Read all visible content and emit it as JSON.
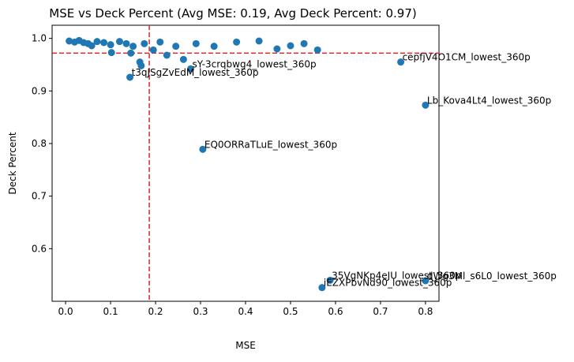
{
  "chart_data": {
    "type": "scatter",
    "title": "MSE vs Deck Percent (Avg MSE: 0.19, Avg Deck Percent: 0.97)",
    "xlabel": "MSE",
    "ylabel": "Deck Percent",
    "xlim": [
      -0.03,
      0.83
    ],
    "ylim": [
      0.5,
      1.025
    ],
    "xticks": [
      "0.0",
      "0.1",
      "0.2",
      "0.3",
      "0.4",
      "0.5",
      "0.6",
      "0.7",
      "0.8"
    ],
    "yticks": [
      "0.6",
      "0.7",
      "0.8",
      "0.9",
      "1.0"
    ],
    "grid": false,
    "marker_color": "#1f77b4",
    "avg_line_color": "#d62728",
    "avg_mse": 0.186,
    "avg_deck_percent": 0.972,
    "points": [
      {
        "x": 0.008,
        "y": 0.995,
        "label": ""
      },
      {
        "x": 0.02,
        "y": 0.993,
        "label": ""
      },
      {
        "x": 0.03,
        "y": 0.996,
        "label": ""
      },
      {
        "x": 0.04,
        "y": 0.992,
        "label": ""
      },
      {
        "x": 0.05,
        "y": 0.99,
        "label": ""
      },
      {
        "x": 0.058,
        "y": 0.986,
        "label": ""
      },
      {
        "x": 0.07,
        "y": 0.994,
        "label": ""
      },
      {
        "x": 0.085,
        "y": 0.992,
        "label": ""
      },
      {
        "x": 0.1,
        "y": 0.988,
        "label": ""
      },
      {
        "x": 0.102,
        "y": 0.973,
        "label": ""
      },
      {
        "x": 0.12,
        "y": 0.994,
        "label": ""
      },
      {
        "x": 0.135,
        "y": 0.99,
        "label": ""
      },
      {
        "x": 0.145,
        "y": 0.972,
        "label": ""
      },
      {
        "x": 0.15,
        "y": 0.985,
        "label": ""
      },
      {
        "x": 0.165,
        "y": 0.955,
        "label": ""
      },
      {
        "x": 0.168,
        "y": 0.948,
        "label": ""
      },
      {
        "x": 0.175,
        "y": 0.99,
        "label": ""
      },
      {
        "x": 0.195,
        "y": 0.978,
        "label": ""
      },
      {
        "x": 0.21,
        "y": 0.993,
        "label": ""
      },
      {
        "x": 0.225,
        "y": 0.968,
        "label": ""
      },
      {
        "x": 0.245,
        "y": 0.985,
        "label": ""
      },
      {
        "x": 0.262,
        "y": 0.96,
        "label": ""
      },
      {
        "x": 0.29,
        "y": 0.99,
        "label": ""
      },
      {
        "x": 0.33,
        "y": 0.985,
        "label": ""
      },
      {
        "x": 0.38,
        "y": 0.993,
        "label": ""
      },
      {
        "x": 0.43,
        "y": 0.995,
        "label": ""
      },
      {
        "x": 0.47,
        "y": 0.98,
        "label": ""
      },
      {
        "x": 0.5,
        "y": 0.986,
        "label": ""
      },
      {
        "x": 0.53,
        "y": 0.99,
        "label": ""
      },
      {
        "x": 0.56,
        "y": 0.978,
        "label": ""
      },
      {
        "x": 0.745,
        "y": 0.955,
        "label": "cepfjV4O1CM_lowest_360p"
      },
      {
        "x": 0.8,
        "y": 0.873,
        "label": "Lb_Kova4Lt4_lowest_360p"
      },
      {
        "x": 0.143,
        "y": 0.926,
        "label": "t3qJSgZvEdM_lowest_360p"
      },
      {
        "x": 0.278,
        "y": 0.942,
        "label": "sY-3crqbwg4_lowest_360p"
      },
      {
        "x": 0.305,
        "y": 0.789,
        "label": "EQ0ORRaTLuE_lowest_360p"
      },
      {
        "x": 0.588,
        "y": 0.54,
        "label": "35VgNKp4eJU_lowest_360p"
      },
      {
        "x": 0.57,
        "y": 0.526,
        "label": "iEZXPbvNd90_lowest_360p"
      },
      {
        "x": 0.8,
        "y": 0.539,
        "label": "dWg3Ml_s6L0_lowest_360p"
      }
    ]
  }
}
